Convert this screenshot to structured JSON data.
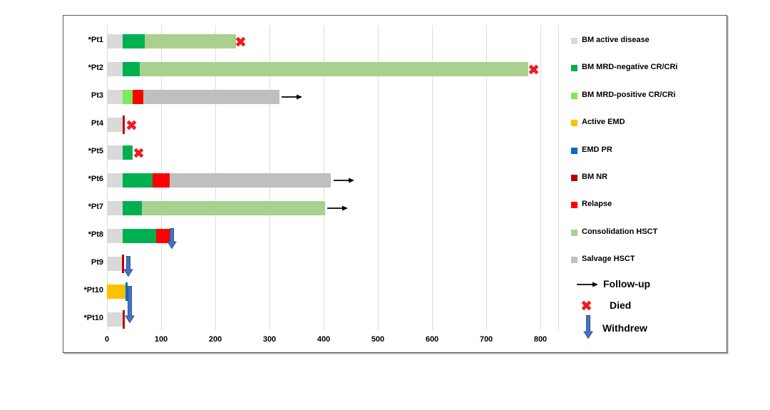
{
  "chart_data": {
    "type": "bar",
    "subtype": "swimmer-plot",
    "title": "",
    "xlabel": "",
    "ylabel": "",
    "xlim": [
      0,
      833
    ],
    "x_ticks": [
      0,
      100,
      200,
      300,
      400,
      500,
      600,
      700,
      800
    ],
    "grid": "vertical",
    "legend_position": "right",
    "legend": [
      {
        "key": "active_disease",
        "label": "BM active disease",
        "color": "#D9D9D9"
      },
      {
        "key": "mrd_negative",
        "label": "BM MRD-negative CR/CRi",
        "color": "#00B050"
      },
      {
        "key": "mrd_positive",
        "label": "BM MRD-positive CR/CRi",
        "color": "#7CEB5A"
      },
      {
        "key": "active_emd",
        "label": "Active EMD",
        "color": "#FFC000"
      },
      {
        "key": "emd_pr",
        "label": "EMD PR",
        "color": "#0070C0"
      },
      {
        "key": "bm_nr",
        "label": "BM NR",
        "color": "#C00000"
      },
      {
        "key": "relapse",
        "label": "Relapse",
        "color": "#FF0000"
      },
      {
        "key": "consolidation_hsct",
        "label": "Consolidation HSCT",
        "color": "#A9D08E"
      },
      {
        "key": "salvage_hsct",
        "label": "Salvage HSCT",
        "color": "#BFBFBF"
      }
    ],
    "marker_legend": [
      {
        "type": "follow_up",
        "label": "Follow-up",
        "color": "#000000"
      },
      {
        "type": "died",
        "label": "Died",
        "color": "#ED1C24"
      },
      {
        "type": "withdrew",
        "label": "Withdrew",
        "color": "#4472C4",
        "stroke": "#2E5395"
      }
    ],
    "patients": [
      {
        "label": "*Pt1",
        "segments": [
          [
            "active_disease",
            0,
            29
          ],
          [
            "mrd_negative",
            29,
            70
          ],
          [
            "consolidation_hsct",
            70,
            238
          ]
        ],
        "events": [
          {
            "type": "died",
            "at": 247
          }
        ]
      },
      {
        "label": "*Pt2",
        "segments": [
          [
            "active_disease",
            0,
            29
          ],
          [
            "mrd_negative",
            29,
            60
          ],
          [
            "consolidation_hsct",
            60,
            778
          ]
        ],
        "events": [
          {
            "type": "died",
            "at": 788
          }
        ]
      },
      {
        "label": "Pt3",
        "segments": [
          [
            "active_disease",
            0,
            29
          ],
          [
            "mrd_positive",
            29,
            48
          ],
          [
            "relapse",
            48,
            67
          ],
          [
            "salvage_hsct",
            67,
            318
          ]
        ],
        "events": [
          {
            "type": "follow_up",
            "at": 323
          }
        ]
      },
      {
        "label": "Pt4",
        "segments": [
          [
            "active_disease",
            0,
            29
          ]
        ],
        "events": [
          {
            "type": "bm_nr",
            "at": 31
          },
          {
            "type": "died",
            "at": 46
          }
        ]
      },
      {
        "label": "*Pt5",
        "segments": [
          [
            "active_disease",
            0,
            29
          ],
          [
            "mrd_negative",
            29,
            48
          ]
        ],
        "events": [
          {
            "type": "died",
            "at": 58
          }
        ]
      },
      {
        "label": "*Pt6",
        "segments": [
          [
            "active_disease",
            0,
            29
          ],
          [
            "mrd_negative",
            29,
            84
          ],
          [
            "relapse",
            84,
            116
          ],
          [
            "salvage_hsct",
            116,
            413
          ]
        ],
        "events": [
          {
            "type": "follow_up",
            "at": 419
          }
        ]
      },
      {
        "label": "*Pt7",
        "segments": [
          [
            "active_disease",
            0,
            29
          ],
          [
            "mrd_negative",
            29,
            64
          ],
          [
            "consolidation_hsct",
            64,
            402
          ]
        ],
        "events": [
          {
            "type": "follow_up",
            "at": 406
          }
        ]
      },
      {
        "label": "*Pt8",
        "segments": [
          [
            "active_disease",
            0,
            29
          ],
          [
            "mrd_negative",
            29,
            91
          ],
          [
            "relapse",
            91,
            117
          ]
        ],
        "events": [
          {
            "type": "withdrew",
            "at": 120
          }
        ]
      },
      {
        "label": "Pt9",
        "segments": [
          [
            "active_disease",
            0,
            28
          ]
        ],
        "events": [
          {
            "type": "bm_nr",
            "at": 30
          },
          {
            "type": "withdrew",
            "at": 40
          }
        ]
      },
      {
        "label": "*Pt10",
        "segments": [
          [
            "active_emd",
            0,
            34
          ]
        ],
        "events": [
          {
            "type": "emd_pr",
            "at": 36
          },
          {
            "type": "withdrew",
            "at": 42,
            "tall": true
          }
        ]
      },
      {
        "label": "*Pt10",
        "segments": [
          [
            "active_disease",
            0,
            29
          ]
        ],
        "events": [
          {
            "type": "bm_nr",
            "at": 31
          }
        ]
      }
    ]
  }
}
